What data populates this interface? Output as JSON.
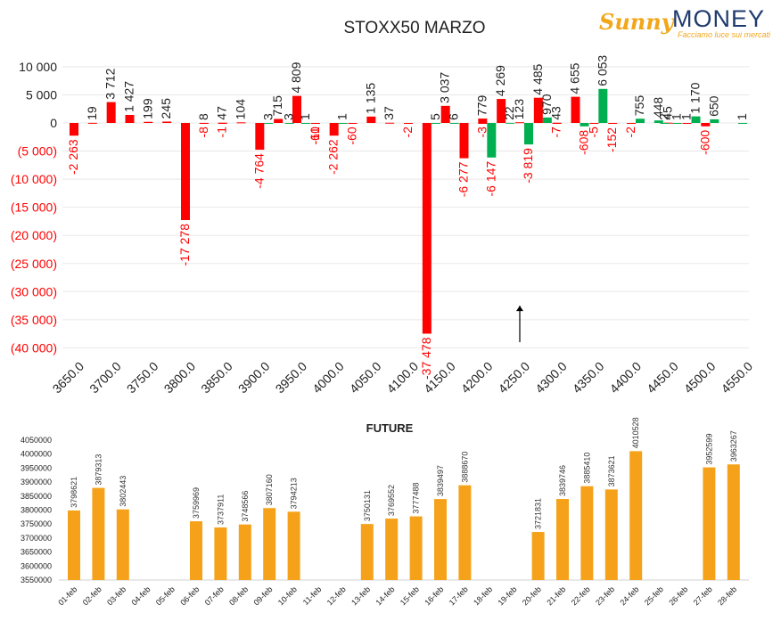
{
  "logo": {
    "brand_left": "Sunny",
    "brand_right": "MONEY",
    "tagline": "Facciamo luce sui mercati"
  },
  "colors": {
    "positive": "#00b050",
    "negative": "#ff0000",
    "future": "#f5a21a",
    "label_negative": "#ff0000",
    "label_positive": "#222222",
    "grid": "#e8e8e8"
  },
  "chart_data": [
    {
      "type": "bar",
      "title": "STOXX50 MARZO",
      "ylim": [
        -40000,
        12000
      ],
      "yticks": [
        10000,
        5000,
        0,
        -5000,
        -10000,
        -15000,
        -20000,
        -25000,
        -30000,
        -35000,
        -40000
      ],
      "ytick_labels": [
        "10 000",
        "5 000",
        "0",
        "(5 000)",
        "(10 000)",
        "(15 000)",
        "(20 000)",
        "(25 000)",
        "(30 000)",
        "(35 000)",
        "(40 000)"
      ],
      "xlim": [
        3650,
        4550
      ],
      "xticks": [
        3650,
        3700,
        3750,
        3800,
        3850,
        3900,
        3950,
        4000,
        4050,
        4100,
        4150,
        4200,
        4250,
        4300,
        4350,
        4400,
        4450,
        4500,
        4550
      ],
      "xtick_labels": [
        "3650.0",
        "3700.0",
        "3750.0",
        "3800.0",
        "3850.0",
        "3900.0",
        "3950.0",
        "4000.0",
        "4050.0",
        "4100.0",
        "4150.0",
        "4200.0",
        "4250.0",
        "4300.0",
        "4350.0",
        "4400.0",
        "4450.0",
        "4500.0",
        "4550.0"
      ],
      "grid": true,
      "series": [
        {
          "color_key": "negative",
          "points": [
            {
              "x": 3650,
              "y": -2263,
              "label": "-2 263"
            },
            {
              "x": 3675,
              "y": 19,
              "label": "19"
            },
            {
              "x": 3700,
              "y": 3712,
              "label": "3 712"
            },
            {
              "x": 3725,
              "y": 1427,
              "label": "1 427"
            },
            {
              "x": 3750,
              "y": 199,
              "label": "199"
            },
            {
              "x": 3775,
              "y": 245,
              "label": "245"
            },
            {
              "x": 3800,
              "y": -17278,
              "label": "-17 278"
            },
            {
              "x": 3825,
              "y": -8,
              "label": "-8"
            },
            {
              "x": 3825,
              "y": 8,
              "label": "8"
            },
            {
              "x": 3850,
              "y": -1,
              "label": "-1"
            },
            {
              "x": 3850,
              "y": 47,
              "label": "47"
            },
            {
              "x": 3875,
              "y": 104,
              "label": "104"
            },
            {
              "x": 3900,
              "y": -4764,
              "label": "-4 764"
            },
            {
              "x": 3925,
              "y": 715,
              "label": "715"
            },
            {
              "x": 3950,
              "y": 4809,
              "label": "4 809"
            },
            {
              "x": 3975,
              "y": -61,
              "label": "-61"
            },
            {
              "x": 3975,
              "y": -10,
              "label": "-10"
            },
            {
              "x": 4000,
              "y": -2262,
              "label": "-2 262"
            },
            {
              "x": 4025,
              "y": -60,
              "label": "-60"
            },
            {
              "x": 4050,
              "y": 1135,
              "label": "1 135"
            },
            {
              "x": 4075,
              "y": 37,
              "label": "37"
            },
            {
              "x": 4100,
              "y": -2,
              "label": "-2"
            },
            {
              "x": 4125,
              "y": -37478,
              "label": "-37 478"
            },
            {
              "x": 4150,
              "y": 3037,
              "label": "3 037"
            },
            {
              "x": 4175,
              "y": -6277,
              "label": "-6 277"
            },
            {
              "x": 4200,
              "y": -3,
              "label": "-3"
            },
            {
              "x": 4200,
              "y": 779,
              "label": "779"
            },
            {
              "x": 4225,
              "y": 4269,
              "label": "4 269"
            },
            {
              "x": 4250,
              "y": 123,
              "label": "123"
            },
            {
              "x": 4275,
              "y": 4485,
              "label": "4 485"
            },
            {
              "x": 4300,
              "y": -7,
              "label": "-7"
            },
            {
              "x": 4300,
              "y": 43,
              "label": "43"
            },
            {
              "x": 4325,
              "y": 4655,
              "label": "4 655"
            },
            {
              "x": 4350,
              "y": -5,
              "label": "-5"
            },
            {
              "x": 4375,
              "y": -152,
              "label": "-152"
            },
            {
              "x": 4400,
              "y": -2,
              "label": "-2"
            },
            {
              "x": 4450,
              "y": 45,
              "label": "45"
            },
            {
              "x": 4475,
              "y": 1,
              "label": "1"
            },
            {
              "x": 4500,
              "y": -600,
              "label": "-600"
            }
          ]
        },
        {
          "color_key": "positive",
          "points": [
            {
              "x": 3912,
              "y": 3,
              "label": "3"
            },
            {
              "x": 3940,
              "y": 3,
              "label": "3"
            },
            {
              "x": 3962,
              "y": 1,
              "label": "1"
            },
            {
              "x": 4012,
              "y": 1,
              "label": "1"
            },
            {
              "x": 4137,
              "y": 5,
              "label": "5"
            },
            {
              "x": 4162,
              "y": 6,
              "label": "6"
            },
            {
              "x": 4212,
              "y": -6147,
              "label": "-6 147"
            },
            {
              "x": 4237,
              "y": 22,
              "label": "22"
            },
            {
              "x": 4262,
              "y": -3819,
              "label": "-3 819"
            },
            {
              "x": 4287,
              "y": 970,
              "label": "970"
            },
            {
              "x": 4337,
              "y": -608,
              "label": "-608"
            },
            {
              "x": 4362,
              "y": 6053,
              "label": "6 053"
            },
            {
              "x": 4412,
              "y": 755,
              "label": "755"
            },
            {
              "x": 4437,
              "y": 448,
              "label": "448"
            },
            {
              "x": 4445,
              "y": 2,
              "label": "2"
            },
            {
              "x": 4462,
              "y": 1,
              "label": "1"
            },
            {
              "x": 4487,
              "y": 1170,
              "label": "1 170"
            },
            {
              "x": 4512,
              "y": 650,
              "label": "650"
            },
            {
              "x": 4550,
              "y": 1,
              "label": "1"
            }
          ]
        }
      ],
      "annotation": {
        "type": "arrow-up",
        "x": 4250,
        "y_from": -39000,
        "y_to": -32500
      }
    },
    {
      "type": "bar",
      "title": "FUTURE",
      "ylim": [
        3550000,
        4050000
      ],
      "yticks": [
        3550000,
        3600000,
        3650000,
        3700000,
        3750000,
        3800000,
        3850000,
        3900000,
        3950000,
        4000000,
        4050000
      ],
      "ytick_labels": [
        "3550000",
        "3600000",
        "3650000",
        "3700000",
        "3750000",
        "3800000",
        "3850000",
        "3900000",
        "3950000",
        "4000000",
        "4050000"
      ],
      "categories": [
        "01-feb",
        "02-feb",
        "03-feb",
        "04-feb",
        "05-feb",
        "06-feb",
        "07-feb",
        "08-feb",
        "09-feb",
        "10-feb",
        "11-feb",
        "12-feb",
        "13-feb",
        "14-feb",
        "15-feb",
        "16-feb",
        "17-feb",
        "18-feb",
        "19-feb",
        "20-feb",
        "21-feb",
        "22-feb",
        "23-feb",
        "24-feb",
        "25-feb",
        "26-feb",
        "27-feb",
        "28-feb"
      ],
      "values": [
        3798621,
        3879313,
        3802443,
        null,
        null,
        3759969,
        3737911,
        3748566,
        3807160,
        3794213,
        null,
        null,
        3750131,
        3769552,
        3777488,
        3839497,
        3888670,
        null,
        null,
        3721831,
        3839746,
        3885410,
        3873621,
        4010528,
        null,
        null,
        3952599,
        3963267
      ],
      "value_labels": [
        "3798621",
        "3879313",
        "3802443",
        "",
        "",
        "3759969",
        "3737911",
        "3748566",
        "3807160",
        "3794213",
        "",
        "",
        "3750131",
        "3769552",
        "3777488",
        "3839497",
        "3888670",
        "",
        "",
        "3721831",
        "3839746",
        "3885410",
        "3873621",
        "4010528",
        "",
        "",
        "3952599",
        "3963267"
      ],
      "grid": false
    }
  ]
}
